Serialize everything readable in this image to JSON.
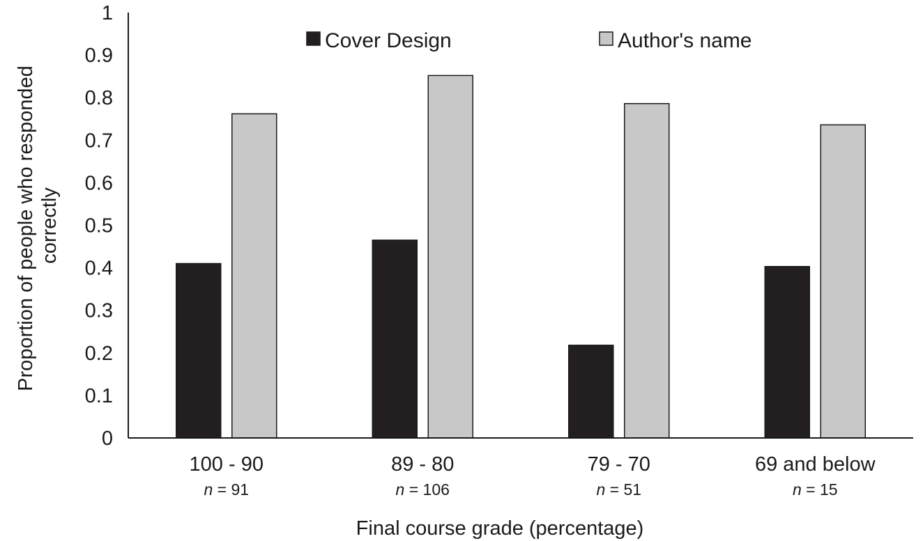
{
  "chart_data": {
    "type": "bar",
    "title": "",
    "xlabel": "Final course grade (percentage)",
    "ylabel_lines": [
      "Proportion of people who responded",
      "correctly"
    ],
    "ylim": [
      0,
      1
    ],
    "yticks": [
      "0",
      "0.1",
      "0.2",
      "0.3",
      "0.4",
      "0.5",
      "0.6",
      "0.7",
      "0.8",
      "0.9",
      "1"
    ],
    "categories": [
      "100 - 90",
      "89 - 80",
      "79 - 70",
      "69 and below"
    ],
    "n_prefix": "n",
    "n_values": [
      "= 91",
      "= 106",
      "= 51",
      "= 15"
    ],
    "series": [
      {
        "name": "Cover Design",
        "color": "#231f20",
        "values": [
          0.41,
          0.465,
          0.218,
          0.403
        ]
      },
      {
        "name": "Author's name",
        "color": "#c8c8c8",
        "values": [
          0.762,
          0.852,
          0.786,
          0.736
        ]
      }
    ],
    "grid": false,
    "legend_position": "top"
  }
}
